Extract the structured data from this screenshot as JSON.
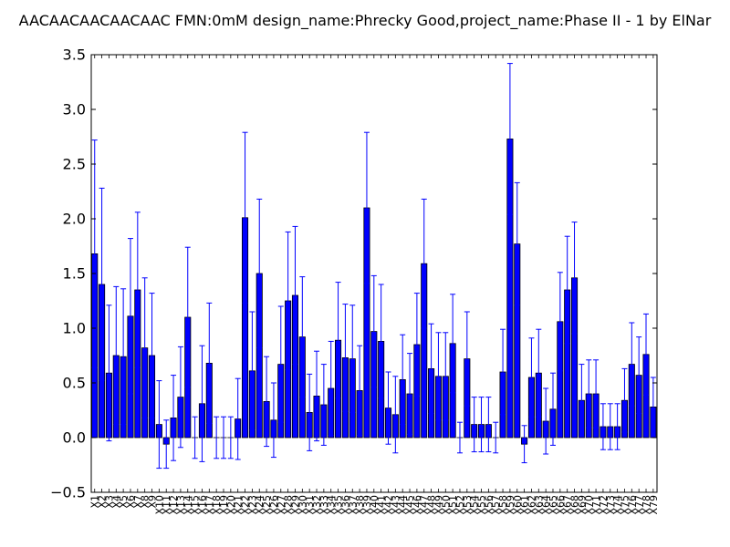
{
  "chart_data": {
    "type": "bar",
    "title": "AACAACAACAACAAC  FMN:0mM  design_name:Phrecky Good,project_name:Phase II - 1 by ElNar",
    "xlabel": "",
    "ylabel": "",
    "ylim": [
      -0.5,
      3.5
    ],
    "yticks": [
      "−0.5",
      "0.0",
      "0.5",
      "1.0",
      "1.5",
      "2.0",
      "2.5",
      "3.0",
      "3.5"
    ],
    "grid": false,
    "bar_color": "#0000ff",
    "error_color": "#0000ff",
    "categories": [
      "X1",
      "X2",
      "X3",
      "X4",
      "X5",
      "X6",
      "X7",
      "X8",
      "X9",
      "X10",
      "X11",
      "X12",
      "X13",
      "X14",
      "X15",
      "X16",
      "X17",
      "X18",
      "X19",
      "X20",
      "X21",
      "X22",
      "X23",
      "X24",
      "X25",
      "X26",
      "X27",
      "X28",
      "X29",
      "X30",
      "X31",
      "X32",
      "X33",
      "X34",
      "X35",
      "X36",
      "X37",
      "X38",
      "X39",
      "X40",
      "X41",
      "X42",
      "X43",
      "X44",
      "X45",
      "X46",
      "X47",
      "X48",
      "X49",
      "X50",
      "X51",
      "X52",
      "X53",
      "X54",
      "X55",
      "X56",
      "X57",
      "X58",
      "X59",
      "X60",
      "X61",
      "X62",
      "X63",
      "X64",
      "X65",
      "X66",
      "X67",
      "X68",
      "X69",
      "X70",
      "X71",
      "X72",
      "X73",
      "X74",
      "X75",
      "X76",
      "X77",
      "X78",
      "X79"
    ],
    "values": [
      1.68,
      1.4,
      0.59,
      0.75,
      0.74,
      1.11,
      1.35,
      0.82,
      0.75,
      0.12,
      -0.06,
      0.18,
      0.37,
      1.1,
      0.0,
      0.31,
      0.68,
      0.0,
      0.0,
      0.0,
      0.17,
      2.01,
      0.61,
      1.5,
      0.33,
      0.16,
      0.67,
      1.25,
      1.3,
      0.92,
      0.23,
      0.38,
      0.3,
      0.45,
      0.89,
      0.73,
      0.72,
      0.43,
      2.1,
      0.97,
      0.88,
      0.27,
      0.21,
      0.53,
      0.4,
      0.85,
      1.59,
      0.63,
      0.56,
      0.56,
      0.86,
      0.0,
      0.72,
      0.12,
      0.12,
      0.12,
      0.0,
      0.6,
      2.73,
      1.77,
      -0.06,
      0.55,
      0.59,
      0.15,
      0.26,
      1.06,
      1.35,
      1.46,
      0.34,
      0.4,
      0.4,
      0.1,
      0.1,
      0.1,
      0.34,
      0.67,
      0.57,
      0.76,
      0.28
    ],
    "errors": [
      1.04,
      0.88,
      0.62,
      0.63,
      0.62,
      0.71,
      0.71,
      0.64,
      0.57,
      0.4,
      0.22,
      0.39,
      0.46,
      0.64,
      0.19,
      0.53,
      0.55,
      0.19,
      0.19,
      0.19,
      0.37,
      0.78,
      0.54,
      0.68,
      0.41,
      0.34,
      0.53,
      0.63,
      0.63,
      0.55,
      0.35,
      0.41,
      0.37,
      0.43,
      0.53,
      0.49,
      0.49,
      0.41,
      0.69,
      0.51,
      0.52,
      0.33,
      0.35,
      0.41,
      0.37,
      0.47,
      0.59,
      0.41,
      0.4,
      0.4,
      0.45,
      0.14,
      0.43,
      0.25,
      0.25,
      0.25,
      0.14,
      0.39,
      0.69,
      0.56,
      0.17,
      0.36,
      0.4,
      0.3,
      0.33,
      0.45,
      0.49,
      0.51,
      0.33,
      0.31,
      0.31,
      0.21,
      0.21,
      0.21,
      0.29,
      0.38,
      0.35,
      0.37,
      0.27
    ]
  }
}
